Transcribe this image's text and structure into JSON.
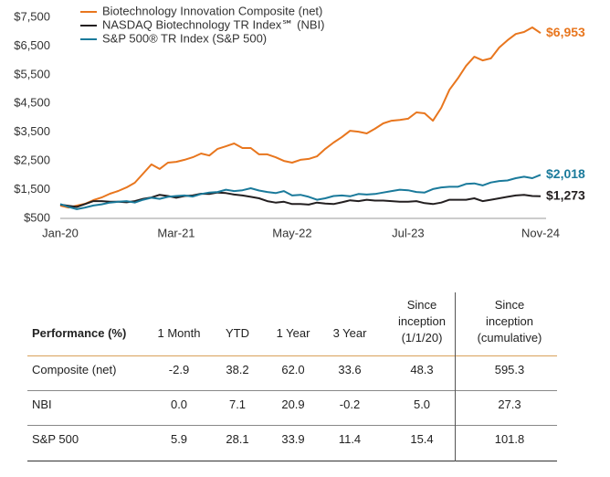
{
  "chart_data": {
    "type": "line",
    "categories": [
      "Jan-20",
      null,
      null,
      null,
      null,
      null,
      null,
      null,
      null,
      null,
      null,
      null,
      null,
      null,
      "Mar-21",
      null,
      null,
      null,
      null,
      null,
      null,
      null,
      null,
      null,
      null,
      null,
      null,
      null,
      "May-22",
      null,
      null,
      null,
      null,
      null,
      null,
      null,
      null,
      null,
      null,
      null,
      null,
      null,
      "Jul-23",
      null,
      null,
      null,
      null,
      null,
      null,
      null,
      null,
      null,
      null,
      null,
      null,
      null,
      null,
      null,
      "Nov-24"
    ],
    "ylim": [
      500,
      7500
    ],
    "yticks": [
      {
        "value": 500,
        "label": "$500"
      },
      {
        "value": 1500,
        "label": "$1,500"
      },
      {
        "value": 2500,
        "label": "$2,500"
      },
      {
        "value": 3500,
        "label": "$3,500"
      },
      {
        "value": 4500,
        "label": "$4,500"
      },
      {
        "value": 5500,
        "label": "$5,500"
      },
      {
        "value": 6500,
        "label": "$6,500"
      },
      {
        "value": 7500,
        "label": "$7,500"
      }
    ],
    "grid": false,
    "legend": "top-left",
    "series": [
      {
        "name": "Biotechnology Innovation Composite (net)",
        "color": "#e8761e",
        "values": [
          945,
          880,
          945,
          1010,
          1135,
          1230,
          1360,
          1455,
          1580,
          1740,
          2060,
          2380,
          2220,
          2440,
          2470,
          2540,
          2630,
          2760,
          2690,
          2920,
          3010,
          3110,
          2950,
          2950,
          2730,
          2730,
          2630,
          2500,
          2440,
          2540,
          2570,
          2660,
          2920,
          3140,
          3330,
          3550,
          3520,
          3460,
          3620,
          3810,
          3900,
          3930,
          3970,
          4190,
          4160,
          3900,
          4350,
          4980,
          5370,
          5810,
          6130,
          6000,
          6070,
          6450,
          6700,
          6920,
          6990,
          7150,
          6953
        ],
        "value_labels": [
          null,
          null,
          null,
          null,
          null,
          null,
          null,
          null,
          null,
          null,
          null,
          null,
          null,
          null,
          null,
          null,
          null,
          null,
          null,
          null,
          null,
          null,
          null,
          null,
          null,
          null,
          null,
          null,
          null,
          null,
          null,
          null,
          null,
          null,
          null,
          null,
          null,
          null,
          null,
          null,
          null,
          null,
          null,
          null,
          null,
          null,
          null,
          null,
          null,
          null,
          null,
          null,
          null,
          null,
          null,
          null,
          null,
          null,
          "$6,953"
        ]
      },
      {
        "name": "NASDAQ Biotechnology TR Index℠ (NBI)",
        "color": "#231f20",
        "values": [
          980,
          940,
          900,
          1000,
          1100,
          1100,
          1080,
          1080,
          1060,
          1100,
          1180,
          1230,
          1320,
          1280,
          1220,
          1280,
          1300,
          1360,
          1350,
          1400,
          1380,
          1330,
          1300,
          1250,
          1200,
          1100,
          1050,
          1080,
          1000,
          1000,
          980,
          1050,
          1020,
          1000,
          1060,
          1130,
          1100,
          1150,
          1120,
          1120,
          1100,
          1080,
          1080,
          1100,
          1030,
          1000,
          1050,
          1150,
          1150,
          1150,
          1200,
          1100,
          1150,
          1200,
          1250,
          1300,
          1320,
          1280,
          1273
        ],
        "value_labels": [
          null,
          null,
          null,
          null,
          null,
          null,
          null,
          null,
          null,
          null,
          null,
          null,
          null,
          null,
          null,
          null,
          null,
          null,
          null,
          null,
          null,
          null,
          null,
          null,
          null,
          null,
          null,
          null,
          null,
          null,
          null,
          null,
          null,
          null,
          null,
          null,
          null,
          null,
          null,
          null,
          null,
          null,
          null,
          null,
          null,
          null,
          null,
          null,
          null,
          null,
          null,
          null,
          null,
          null,
          null,
          null,
          null,
          null,
          "$1,273"
        ]
      },
      {
        "name": "S&P 500® TR Index (S&P 500)",
        "color": "#1a7a9b",
        "values": [
          1000,
          900,
          820,
          880,
          950,
          990,
          1050,
          1080,
          1100,
          1050,
          1150,
          1220,
          1180,
          1250,
          1280,
          1300,
          1260,
          1350,
          1400,
          1420,
          1500,
          1450,
          1480,
          1550,
          1470,
          1420,
          1380,
          1450,
          1300,
          1320,
          1250,
          1150,
          1200,
          1280,
          1300,
          1270,
          1350,
          1330,
          1350,
          1400,
          1450,
          1500,
          1480,
          1420,
          1400,
          1520,
          1580,
          1600,
          1600,
          1700,
          1720,
          1650,
          1750,
          1800,
          1820,
          1900,
          1950,
          1900,
          2018
        ],
        "value_labels": [
          null,
          null,
          null,
          null,
          null,
          null,
          null,
          null,
          null,
          null,
          null,
          null,
          null,
          null,
          null,
          null,
          null,
          null,
          null,
          null,
          null,
          null,
          null,
          null,
          null,
          null,
          null,
          null,
          null,
          null,
          null,
          null,
          null,
          null,
          null,
          null,
          null,
          null,
          null,
          null,
          null,
          null,
          null,
          null,
          null,
          null,
          null,
          null,
          null,
          null,
          null,
          null,
          null,
          null,
          null,
          null,
          null,
          null,
          "$2,018"
        ]
      }
    ]
  },
  "table": {
    "header": [
      "Performance (%)",
      "1 Month",
      "YTD",
      "1 Year",
      "3 Year",
      "Since inception (1/1/20)",
      "Since inception (cumulative)"
    ],
    "rows": [
      [
        "Composite (net)",
        "-2.9",
        "38.2",
        "62.0",
        "33.6",
        "48.3",
        "595.3"
      ],
      [
        "NBI",
        "0.0",
        "7.1",
        "20.9",
        "-0.2",
        "5.0",
        "27.3"
      ],
      [
        "S&P 500",
        "5.9",
        "28.1",
        "33.9",
        "11.4",
        "15.4",
        "101.8"
      ]
    ]
  }
}
